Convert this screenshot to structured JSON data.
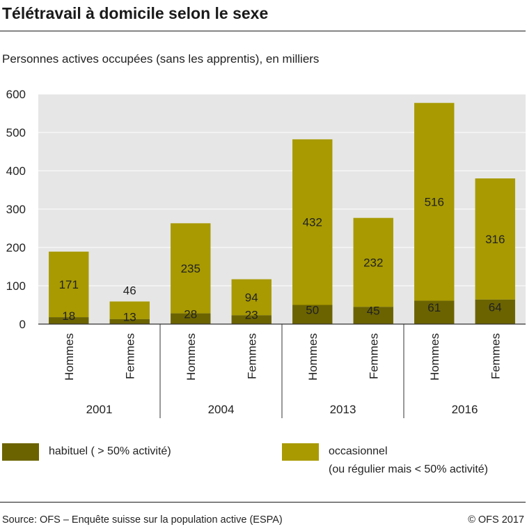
{
  "title": "Télétravail à domicile selon le sexe",
  "subtitle": "Personnes actives occupées (sans les apprentis), en milliers",
  "colors": {
    "habituel": "#6b6300",
    "occasionnel": "#a89a00",
    "plot_bg": "#e6e6e6",
    "grid": "#ffffff"
  },
  "legend": {
    "habituel": "habituel ( > 50% activité)",
    "occasionnel_line1": "occasionnel",
    "occasionnel_line2": "(ou régulier mais < 50% activité)"
  },
  "footer": {
    "source": "Source: OFS – Enquête suisse sur la population active (ESPA)",
    "copyright": "© OFS 2017"
  },
  "chart_data": {
    "type": "bar",
    "stacked": true,
    "title": "Télétravail à domicile selon le sexe",
    "ylim": [
      0,
      600
    ],
    "yticks": [
      0,
      100,
      200,
      300,
      400,
      500,
      600
    ],
    "grid": true,
    "legend_position": "bottom",
    "groups": [
      "2001",
      "2004",
      "2013",
      "2016"
    ],
    "categories": [
      "Hommes",
      "Femmes",
      "Hommes",
      "Femmes",
      "Hommes",
      "Femmes",
      "Hommes",
      "Femmes"
    ],
    "category_group": [
      "2001",
      "2001",
      "2004",
      "2004",
      "2013",
      "2013",
      "2016",
      "2016"
    ],
    "series": [
      {
        "name": "habituel ( > 50% activité)",
        "values": [
          18,
          13,
          28,
          23,
          50,
          45,
          61,
          64
        ]
      },
      {
        "name": "occasionnel (ou régulier mais < 50% activité)",
        "values": [
          171,
          46,
          235,
          94,
          432,
          232,
          516,
          316
        ]
      }
    ]
  }
}
